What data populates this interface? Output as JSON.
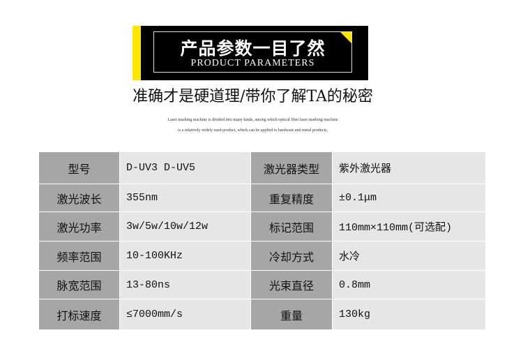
{
  "banner": {
    "title": "产品参数一目了然",
    "subtitle": "PRODUCT PARAMETERS",
    "accent": "#ffe600"
  },
  "headline": "准确才是硬道理/带你了解TA的秘密",
  "description": [
    "Laser marking machine is divided into many kinds, among which optical fiber laser marking machine",
    "is a relatively widely used product, which can be applied to hardware and metal products,"
  ],
  "specs": [
    {
      "label1": "型号",
      "value1": "D-UV3 D-UV5",
      "label2": "激光器类型",
      "value2": "紫外激光器"
    },
    {
      "label1": "激光波长",
      "value1": "355nm",
      "label2": "重复精度",
      "value2": "±0.1μm"
    },
    {
      "label1": "激光功率",
      "value1": "3w/5w/10w/12w",
      "label2": "标记范围",
      "value2": "110mm×110mm(可选配)"
    },
    {
      "label1": "频率范围",
      "value1": "10-100KHz",
      "label2": "冷却方式",
      "value2": "水冷"
    },
    {
      "label1": "脉宽范围",
      "value1": "13-80ns",
      "label2": "光束直径",
      "value2": "0.8mm"
    },
    {
      "label1": "打标速度",
      "value1": "≤7000mm/s",
      "label2": "重量",
      "value2": "130kg"
    }
  ]
}
